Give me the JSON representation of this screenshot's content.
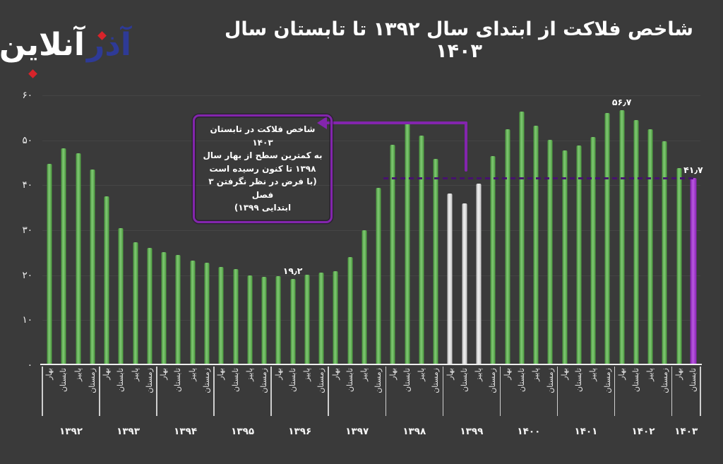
{
  "logo": {
    "site_name": "آذرآنلاین",
    "blue_text": "آذر",
    "white_text": "آنلاین",
    "accent_red": "#d8232a",
    "accent_blue": "#2e3a96"
  },
  "title": "شاخص فلاکت از ابتدای سال ۱۳۹۲ تا تابستان سال ۱۴۰۳",
  "annotation": {
    "lines": [
      "شاخص فلاکت در تابستان ۱۴۰۳",
      "به کمترین سطح از بهار سال",
      "۱۳۹۸ تا کنون رسیده است",
      "(با فرض در نظر نگرفتن ۳ فصل",
      "ابتدایی ۱۳۹۹)"
    ]
  },
  "colors": {
    "background": "#3a3a3a",
    "bar_green": "#58b748",
    "bar_neutral": "#e9e9e9",
    "bar_highlight": "#a426d8",
    "annotation_purple": "#8325ad",
    "dashed_line": "#471070",
    "axis": "#ededed",
    "text": "#ffffff"
  },
  "chart_data": {
    "type": "bar",
    "title": "شاخص فلاکت از ابتدای سال ۱۳۹۲ تا تابستان سال ۱۴۰۳",
    "ylim": [
      0,
      60
    ],
    "grid": "horizontal-faint",
    "legend": null,
    "yticks": [
      {
        "value": 0,
        "label": "۰"
      },
      {
        "value": 10,
        "label": "۱۰"
      },
      {
        "value": 20,
        "label": "۲۰"
      },
      {
        "value": 30,
        "label": "۳۰"
      },
      {
        "value": 40,
        "label": "۴۰"
      },
      {
        "value": 50,
        "label": "۵۰"
      },
      {
        "value": 60,
        "label": "۶۰"
      }
    ],
    "reference_line": {
      "value": 41.7,
      "label": "۴۱٫۷"
    },
    "seasons_order": [
      "بهار",
      "تابستان",
      "پاییز",
      "زمستان"
    ],
    "groups": [
      {
        "year": "۱۳۹۲",
        "bars": [
          {
            "season": "بهار",
            "value": 44.8
          },
          {
            "season": "تابستان",
            "value": 48.2
          },
          {
            "season": "پاییز",
            "value": 47.1
          },
          {
            "season": "زمستان",
            "value": 43.5
          }
        ]
      },
      {
        "year": "۱۳۹۳",
        "bars": [
          {
            "season": "بهار",
            "value": 37.6
          },
          {
            "season": "تابستان",
            "value": 30.4
          },
          {
            "season": "پاییز",
            "value": 27.4
          },
          {
            "season": "زمستان",
            "value": 26.0
          }
        ]
      },
      {
        "year": "۱۳۹۴",
        "bars": [
          {
            "season": "بهار",
            "value": 25.1
          },
          {
            "season": "تابستان",
            "value": 24.5
          },
          {
            "season": "پاییز",
            "value": 23.2
          },
          {
            "season": "زمستان",
            "value": 22.8
          }
        ]
      },
      {
        "year": "۱۳۹۵",
        "bars": [
          {
            "season": "بهار",
            "value": 21.9
          },
          {
            "season": "تابستان",
            "value": 21.3
          },
          {
            "season": "پاییز",
            "value": 19.9
          },
          {
            "season": "زمستان",
            "value": 19.6
          }
        ]
      },
      {
        "year": "۱۳۹۶",
        "bars": [
          {
            "season": "بهار",
            "value": 19.8
          },
          {
            "season": "تابستان",
            "value": 19.2,
            "label": "۱۹٫۲"
          },
          {
            "season": "پاییز",
            "value": 20.1
          },
          {
            "season": "زمستان",
            "value": 20.6
          }
        ]
      },
      {
        "year": "۱۳۹۷",
        "bars": [
          {
            "season": "بهار",
            "value": 20.9
          },
          {
            "season": "تابستان",
            "value": 24.0
          },
          {
            "season": "پاییز",
            "value": 30.0
          },
          {
            "season": "زمستان",
            "value": 39.4
          }
        ]
      },
      {
        "year": "۱۳۹۸",
        "bars": [
          {
            "season": "بهار",
            "value": 49.0
          },
          {
            "season": "تابستان",
            "value": 53.8
          },
          {
            "season": "پاییز",
            "value": 51.1
          },
          {
            "season": "زمستان",
            "value": 45.9
          }
        ]
      },
      {
        "year": "۱۳۹۹",
        "bars": [
          {
            "season": "بهار",
            "value": 38.1,
            "color": "neutral"
          },
          {
            "season": "تابستان",
            "value": 36.0,
            "color": "neutral"
          },
          {
            "season": "پاییز",
            "value": 40.4,
            "color": "neutral"
          },
          {
            "season": "زمستان",
            "value": 46.5
          }
        ]
      },
      {
        "year": "۱۴۰۰",
        "bars": [
          {
            "season": "بهار",
            "value": 52.5
          },
          {
            "season": "تابستان",
            "value": 56.4
          },
          {
            "season": "پاییز",
            "value": 53.2
          },
          {
            "season": "زمستان",
            "value": 50.1
          }
        ]
      },
      {
        "year": "۱۴۰۱",
        "bars": [
          {
            "season": "بهار",
            "value": 47.7
          },
          {
            "season": "تابستان",
            "value": 48.8
          },
          {
            "season": "پاییز",
            "value": 50.7
          },
          {
            "season": "زمستان",
            "value": 56.0
          }
        ]
      },
      {
        "year": "۱۴۰۲",
        "bars": [
          {
            "season": "بهار",
            "value": 56.7,
            "label": "۵۶٫۷"
          },
          {
            "season": "تابستان",
            "value": 54.5
          },
          {
            "season": "پاییز",
            "value": 52.5
          },
          {
            "season": "زمستان",
            "value": 49.8
          }
        ]
      },
      {
        "year": "۱۴۰۳",
        "bars": [
          {
            "season": "بهار",
            "value": 43.9
          },
          {
            "season": "تابستان",
            "value": 41.7,
            "label": "۴۱٫۷",
            "color": "highlight"
          }
        ]
      }
    ]
  }
}
